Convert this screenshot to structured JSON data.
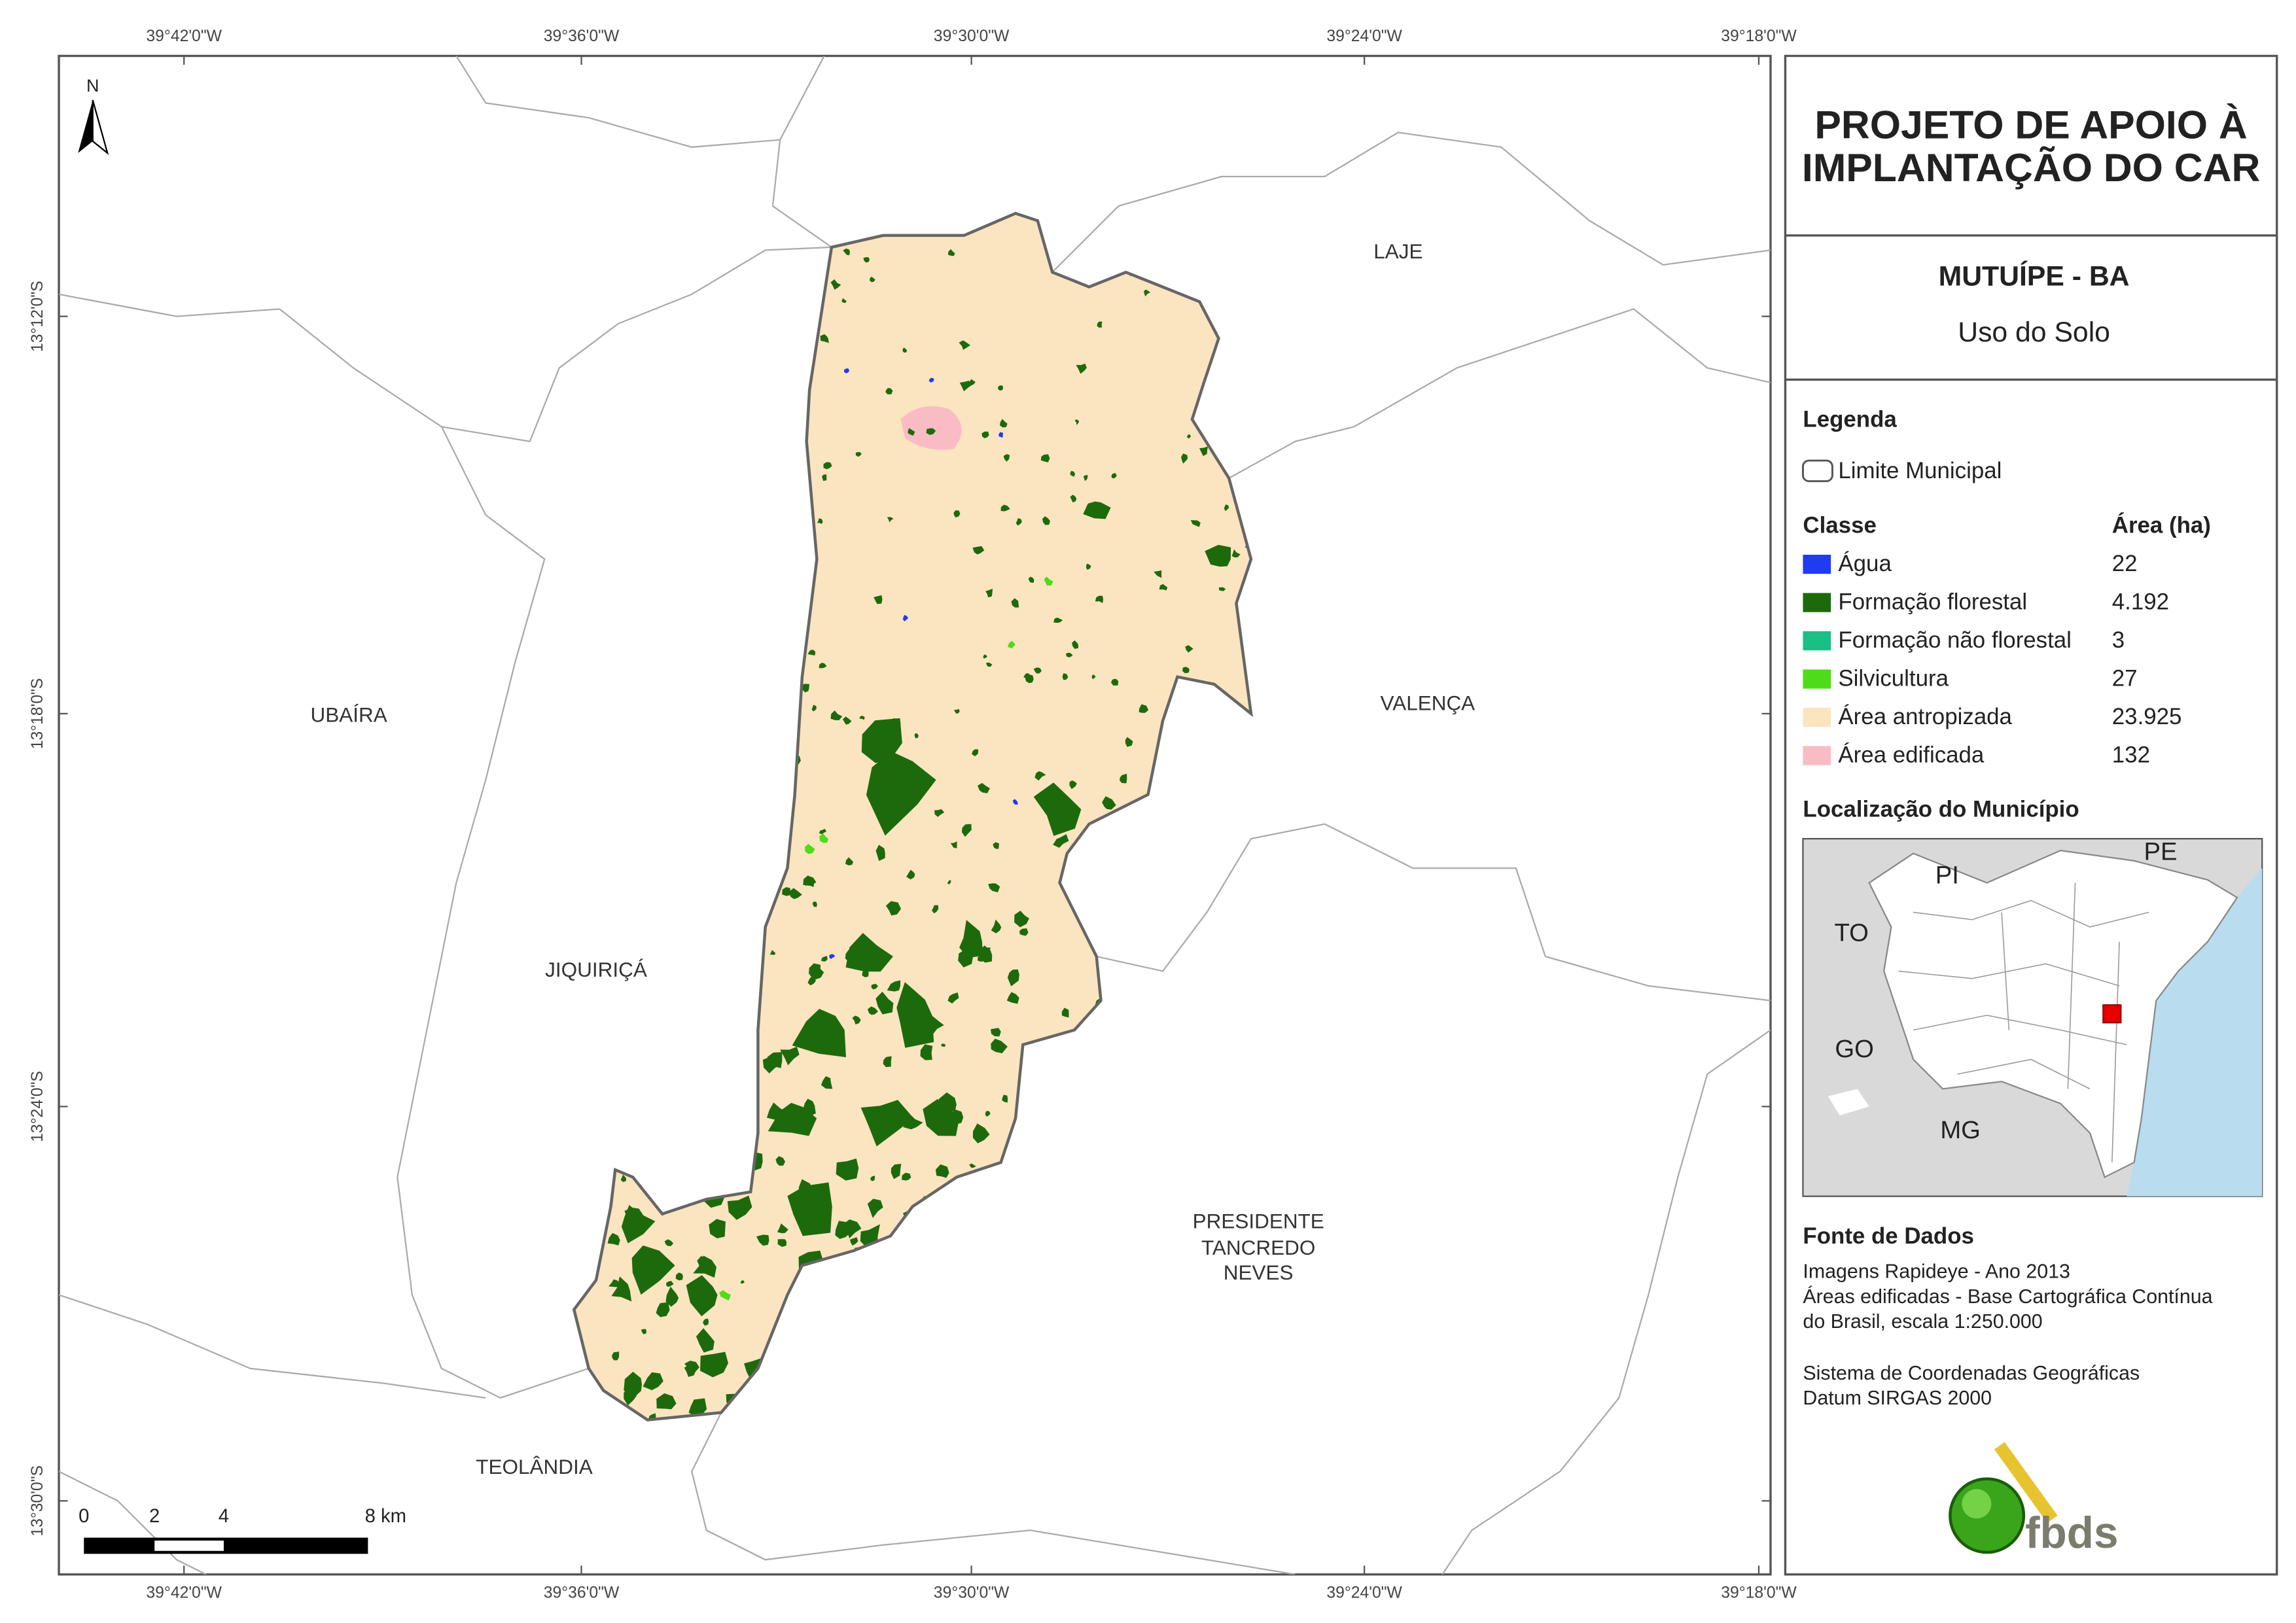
{
  "map": {
    "north": "N",
    "lon_labels": [
      "39°42'0\"W",
      "39°36'0\"W",
      "39°30'0\"W",
      "39°24'0\"W",
      "39°18'0\"W"
    ],
    "lat_labels": [
      "13°12'0\"S",
      "13°18'0\"S",
      "13°24'0\"S",
      "13°30'0\"S"
    ],
    "places": [
      "LAJE",
      "UBAÍRA",
      "VALENÇA",
      "JIQUIRIÇÁ",
      "PRESIDENTE",
      "TANCREDO",
      "NEVES",
      "TEOLÂNDIA"
    ],
    "scale_labels": [
      "0",
      "2",
      "4",
      "8 km"
    ]
  },
  "header": {
    "title": [
      "PROJETO DE APOIO À",
      "IMPLANTAÇÃO DO CAR"
    ],
    "municipality": "MUTUÍPE - BA",
    "subtitle": "Uso do Solo"
  },
  "legend": {
    "title": "Legenda",
    "boundary": "Limite Municipal",
    "class_header": "Classe",
    "area_header": "Área (ha)",
    "rows": [
      {
        "name": "Água",
        "area": "22",
        "color": "#1f3cf2"
      },
      {
        "name": "Formação florestal",
        "area": "4.192",
        "color": "#1d6a0c"
      },
      {
        "name": "Formação não florestal",
        "area": "3",
        "color": "#19bf85"
      },
      {
        "name": "Silvicultura",
        "area": "27",
        "color": "#4fdc18"
      },
      {
        "name": "Área antropizada",
        "area": "23.925",
        "color": "#fbe4c0"
      },
      {
        "name": "Área edificada",
        "area": "132",
        "color": "#f9bcc4"
      }
    ]
  },
  "location": {
    "title": "Localização do Município",
    "states": [
      "PI",
      "PE",
      "TO",
      "GO",
      "MG"
    ]
  },
  "sources": {
    "title": "Fonte de Dados",
    "lines": [
      "Imagens Rapideye - Ano 2013",
      "Áreas edificadas - Base Cartográfica Contínua",
      "do Brasil, escala 1:250.000",
      "Sistema de Coordenadas Geográficas",
      "Datum SIRGAS 2000"
    ],
    "logo": "fbds"
  }
}
